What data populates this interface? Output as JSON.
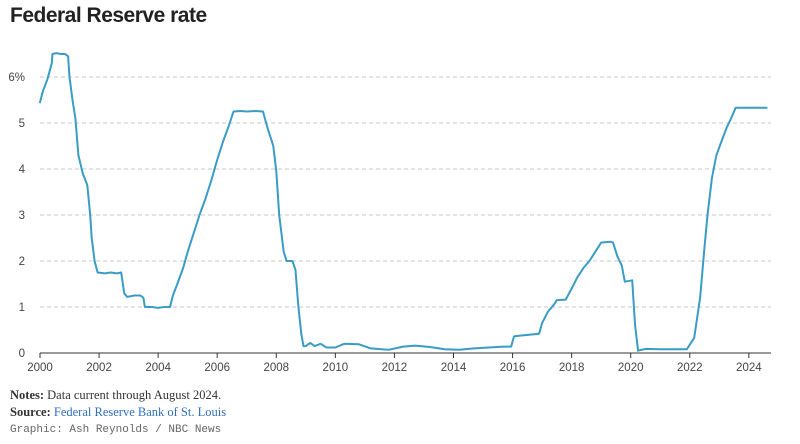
{
  "title": "Federal Reserve rate",
  "notes": {
    "label": "Notes:",
    "text": "Data current through August 2024."
  },
  "source": {
    "label": "Source:",
    "text": "Federal Reserve Bank of St. Louis"
  },
  "credit": "Graphic: Ash Reynolds / NBC News",
  "colors": {
    "line": "#3a9cc4",
    "grid": "#c8c8c8",
    "axis": "#333333"
  },
  "chart_data": {
    "type": "line",
    "title": "Federal Reserve rate",
    "xlabel": "",
    "ylabel": "",
    "xlim": [
      2000,
      2024.75
    ],
    "ylim": [
      0,
      6.5
    ],
    "grid": true,
    "y_ticks": [
      0,
      1,
      2,
      3,
      4,
      5,
      6
    ],
    "y_tick_labels": [
      "0",
      "1",
      "2",
      "3",
      "4",
      "5",
      "6%"
    ],
    "x_ticks": [
      2000,
      2002,
      2004,
      2006,
      2008,
      2010,
      2012,
      2014,
      2016,
      2018,
      2020,
      2022,
      2024
    ],
    "x_tick_labels": [
      "2000",
      "2002",
      "2004",
      "2006",
      "2008",
      "2010",
      "2012",
      "2014",
      "2016",
      "2018",
      "2020",
      "2022",
      "2024"
    ],
    "series": [
      {
        "values": [
          [
            2000.0,
            5.45
          ],
          [
            2000.1,
            5.7
          ],
          [
            2000.25,
            5.95
          ],
          [
            2000.4,
            6.3
          ],
          [
            2000.42,
            6.5
          ],
          [
            2000.55,
            6.52
          ],
          [
            2000.7,
            6.5
          ],
          [
            2000.85,
            6.5
          ],
          [
            2000.95,
            6.45
          ],
          [
            2001.0,
            6.0
          ],
          [
            2001.1,
            5.5
          ],
          [
            2001.2,
            5.1
          ],
          [
            2001.3,
            4.3
          ],
          [
            2001.45,
            3.9
          ],
          [
            2001.6,
            3.65
          ],
          [
            2001.7,
            3.0
          ],
          [
            2001.75,
            2.5
          ],
          [
            2001.85,
            2.0
          ],
          [
            2001.95,
            1.75
          ],
          [
            2002.2,
            1.73
          ],
          [
            2002.4,
            1.75
          ],
          [
            2002.6,
            1.73
          ],
          [
            2002.75,
            1.75
          ],
          [
            2002.85,
            1.3
          ],
          [
            2002.95,
            1.22
          ],
          [
            2003.2,
            1.25
          ],
          [
            2003.4,
            1.25
          ],
          [
            2003.5,
            1.2
          ],
          [
            2003.55,
            1.0
          ],
          [
            2003.8,
            1.0
          ],
          [
            2004.0,
            0.98
          ],
          [
            2004.2,
            1.0
          ],
          [
            2004.4,
            1.0
          ],
          [
            2004.5,
            1.25
          ],
          [
            2004.65,
            1.5
          ],
          [
            2004.85,
            1.85
          ],
          [
            2005.0,
            2.2
          ],
          [
            2005.2,
            2.6
          ],
          [
            2005.4,
            3.0
          ],
          [
            2005.6,
            3.35
          ],
          [
            2005.8,
            3.75
          ],
          [
            2006.0,
            4.2
          ],
          [
            2006.2,
            4.6
          ],
          [
            2006.4,
            4.95
          ],
          [
            2006.55,
            5.25
          ],
          [
            2006.8,
            5.26
          ],
          [
            2007.0,
            5.25
          ],
          [
            2007.3,
            5.26
          ],
          [
            2007.55,
            5.25
          ],
          [
            2007.7,
            4.9
          ],
          [
            2007.9,
            4.5
          ],
          [
            2008.0,
            3.95
          ],
          [
            2008.1,
            3.0
          ],
          [
            2008.25,
            2.2
          ],
          [
            2008.35,
            2.0
          ],
          [
            2008.55,
            2.0
          ],
          [
            2008.65,
            1.8
          ],
          [
            2008.75,
            1.0
          ],
          [
            2008.85,
            0.4
          ],
          [
            2008.92,
            0.15
          ],
          [
            2009.0,
            0.15
          ],
          [
            2009.15,
            0.22
          ],
          [
            2009.3,
            0.15
          ],
          [
            2009.5,
            0.2
          ],
          [
            2009.7,
            0.12
          ],
          [
            2010.0,
            0.12
          ],
          [
            2010.3,
            0.2
          ],
          [
            2010.8,
            0.19
          ],
          [
            2011.2,
            0.1
          ],
          [
            2011.8,
            0.07
          ],
          [
            2012.3,
            0.14
          ],
          [
            2012.7,
            0.16
          ],
          [
            2013.2,
            0.13
          ],
          [
            2013.7,
            0.08
          ],
          [
            2014.2,
            0.07
          ],
          [
            2014.7,
            0.1
          ],
          [
            2015.2,
            0.12
          ],
          [
            2015.7,
            0.14
          ],
          [
            2015.95,
            0.14
          ],
          [
            2016.05,
            0.36
          ],
          [
            2016.3,
            0.38
          ],
          [
            2016.6,
            0.4
          ],
          [
            2016.9,
            0.42
          ],
          [
            2017.0,
            0.65
          ],
          [
            2017.2,
            0.9
          ],
          [
            2017.4,
            1.05
          ],
          [
            2017.5,
            1.15
          ],
          [
            2017.8,
            1.16
          ],
          [
            2018.0,
            1.4
          ],
          [
            2018.2,
            1.65
          ],
          [
            2018.4,
            1.85
          ],
          [
            2018.6,
            2.0
          ],
          [
            2018.8,
            2.2
          ],
          [
            2019.0,
            2.4
          ],
          [
            2019.3,
            2.42
          ],
          [
            2019.4,
            2.4
          ],
          [
            2019.55,
            2.1
          ],
          [
            2019.7,
            1.9
          ],
          [
            2019.8,
            1.55
          ],
          [
            2020.05,
            1.58
          ],
          [
            2020.15,
            0.6
          ],
          [
            2020.25,
            0.05
          ],
          [
            2020.5,
            0.09
          ],
          [
            2021.0,
            0.08
          ],
          [
            2021.5,
            0.08
          ],
          [
            2021.9,
            0.08
          ],
          [
            2022.15,
            0.33
          ],
          [
            2022.35,
            1.2
          ],
          [
            2022.5,
            2.3
          ],
          [
            2022.6,
            3.0
          ],
          [
            2022.75,
            3.8
          ],
          [
            2022.9,
            4.3
          ],
          [
            2023.1,
            4.65
          ],
          [
            2023.25,
            4.9
          ],
          [
            2023.4,
            5.1
          ],
          [
            2023.55,
            5.33
          ],
          [
            2023.8,
            5.33
          ],
          [
            2024.0,
            5.33
          ],
          [
            2024.3,
            5.33
          ],
          [
            2024.6,
            5.33
          ]
        ]
      }
    ]
  }
}
